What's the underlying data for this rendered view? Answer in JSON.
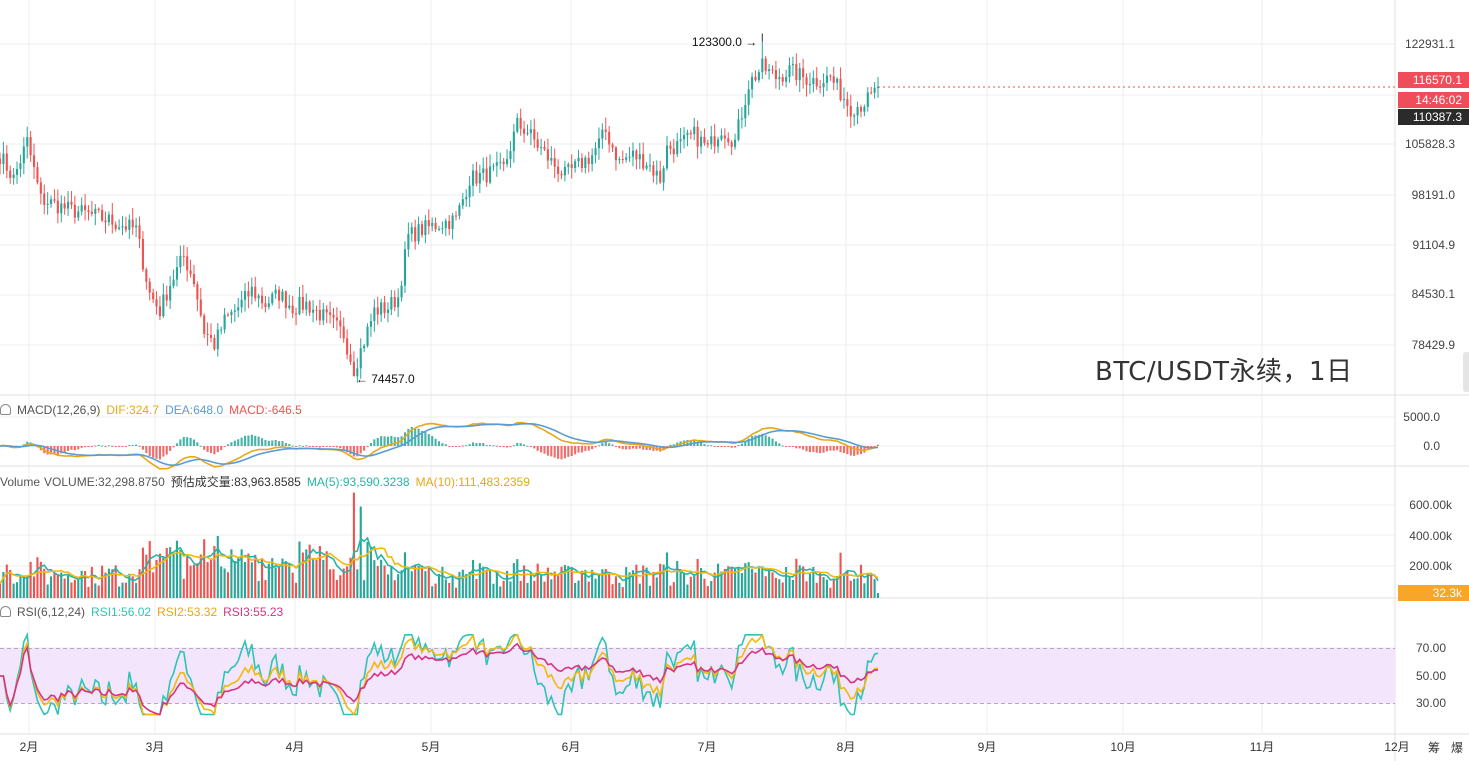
{
  "title_watermark": "BTC/USDT永续，1日",
  "price_axis": [
    "122931.1",
    "105828.3",
    "98191.0",
    "91104.9",
    "84530.1",
    "78429.9"
  ],
  "price_badges": {
    "last": "116570.1",
    "countdown": "14:46:02",
    "marker": "110387.3"
  },
  "price_annotations": {
    "high": "123300.0",
    "low": "74457.0"
  },
  "macd": {
    "label": "MACD(12,26,9)",
    "dif": "DIF:324.7",
    "dea": "DEA:648.0",
    "macd": "MACD:-646.5",
    "axis": [
      "5000.0",
      "0.0"
    ]
  },
  "volume": {
    "label": "Volume",
    "volume": "VOLUME:32,298.8750",
    "est": "预估成交量:83,963.8585",
    "ma5": "MA(5):93,590.3238",
    "ma10": "MA(10):111,483.2359",
    "axis": [
      "600.00k",
      "400.00k",
      "200.00k"
    ],
    "badge": "32.3k"
  },
  "rsi": {
    "label": "RSI(6,12,24)",
    "rsi1": "RSI1:56.02",
    "rsi2": "RSI2:53.32",
    "rsi3": "RSI3:55.23",
    "axis": [
      "70.00",
      "50.00",
      "30.00"
    ]
  },
  "x_axis": [
    "2月",
    "3月",
    "4月",
    "5月",
    "6月",
    "7月",
    "8月",
    "9月",
    "10月",
    "11月",
    "12月"
  ],
  "footer_icons": [
    "筹",
    "爆"
  ],
  "colors": {
    "up": "#26a69a",
    "down": "#ef5350",
    "dif": "#e6a817",
    "dea": "#5b9bd5",
    "ma5": "#26b5a6",
    "ma10": "#f0b90b",
    "rsi1": "#2ec4b6",
    "rsi2": "#f0b90b",
    "rsi3": "#d63384",
    "rsi_band": "#f3e5fb"
  },
  "chart_data": {
    "type": "candlestick",
    "interval": "1D",
    "price_range": [
      72000,
      125500
    ],
    "start_date": "2025-01-18",
    "waypoints": [
      [
        0,
        106500
      ],
      [
        4,
        103000
      ],
      [
        8,
        108500
      ],
      [
        12,
        100000
      ],
      [
        20,
        98500
      ],
      [
        28,
        97500
      ],
      [
        34,
        96500
      ],
      [
        40,
        95500
      ],
      [
        44,
        86000
      ],
      [
        47,
        83500
      ],
      [
        50,
        87500
      ],
      [
        54,
        91500
      ],
      [
        57,
        88000
      ],
      [
        60,
        80500
      ],
      [
        63,
        78500
      ],
      [
        66,
        82000
      ],
      [
        70,
        84000
      ],
      [
        74,
        86500
      ],
      [
        78,
        84500
      ],
      [
        82,
        86000
      ],
      [
        86,
        84000
      ],
      [
        90,
        84500
      ],
      [
        94,
        83000
      ],
      [
        98,
        81500
      ],
      [
        101,
        80000
      ],
      [
        104,
        74900
      ],
      [
        107,
        79000
      ],
      [
        110,
        83500
      ],
      [
        114,
        84000
      ],
      [
        117,
        85500
      ],
      [
        120,
        94500
      ],
      [
        124,
        95500
      ],
      [
        130,
        96500
      ],
      [
        134,
        97000
      ],
      [
        138,
        103000
      ],
      [
        142,
        103500
      ],
      [
        148,
        104500
      ],
      [
        152,
        111000
      ],
      [
        155,
        110000
      ],
      [
        158,
        108000
      ],
      [
        162,
        105500
      ],
      [
        166,
        103500
      ],
      [
        170,
        105000
      ],
      [
        174,
        106500
      ],
      [
        178,
        110000
      ],
      [
        182,
        105500
      ],
      [
        186,
        106500
      ],
      [
        190,
        105500
      ],
      [
        194,
        103000
      ],
      [
        196,
        107500
      ],
      [
        200,
        108000
      ],
      [
        204,
        109500
      ],
      [
        208,
        107500
      ],
      [
        212,
        110500
      ],
      [
        216,
        108500
      ],
      [
        220,
        117000
      ],
      [
        224,
        119500
      ],
      [
        228,
        118000
      ],
      [
        232,
        119000
      ],
      [
        236,
        118000
      ],
      [
        240,
        117500
      ],
      [
        244,
        118000
      ],
      [
        248,
        115000
      ],
      [
        250,
        113500
      ],
      [
        253,
        114000
      ],
      [
        256,
        115000
      ],
      [
        258,
        116570
      ]
    ],
    "events": [
      [
        224,
        123300,
        "high"
      ],
      [
        104,
        74457,
        "low"
      ]
    ],
    "macd_range": [
      -2200,
      7500
    ],
    "volume_range": [
      0,
      720000
    ],
    "rsi_range": [
      20,
      82
    ]
  }
}
